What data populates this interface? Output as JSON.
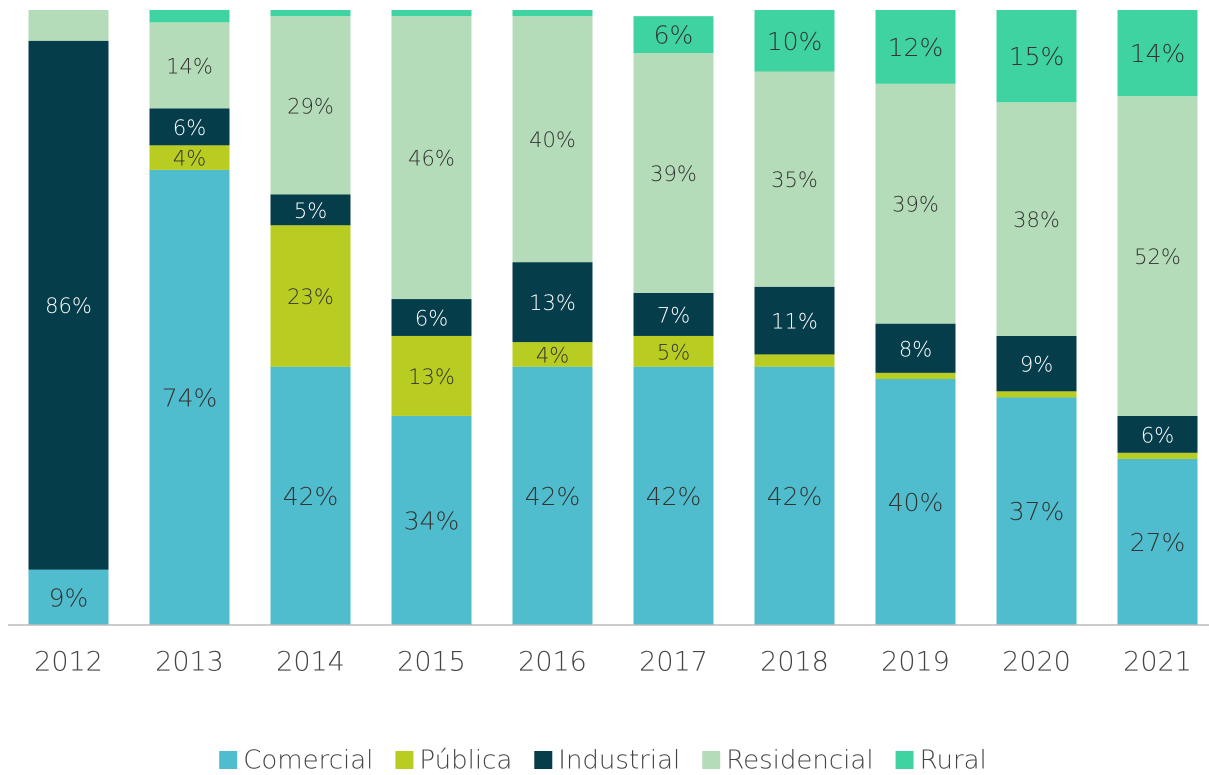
{
  "chart_data": {
    "type": "bar",
    "stacked": true,
    "categories": [
      "2012",
      "2013",
      "2014",
      "2015",
      "2016",
      "2017",
      "2018",
      "2019",
      "2020",
      "2021"
    ],
    "ylim": [
      0,
      100
    ],
    "series": [
      {
        "name": "Comercial",
        "color": "#4fbdce",
        "values": [
          9,
          74,
          42,
          34,
          42,
          42,
          42,
          40,
          37,
          27
        ],
        "value_labels": [
          "9%",
          "74%",
          "42%",
          "34%",
          "42%",
          "42%",
          "42%",
          "40%",
          "37%",
          "27%"
        ]
      },
      {
        "name": "Pública",
        "color": "#b9cc22",
        "values": [
          0,
          4,
          23,
          13,
          4,
          5,
          2,
          1,
          1,
          1
        ],
        "value_labels": [
          null,
          "4%",
          "23%",
          "13%",
          "4%",
          "5%",
          null,
          null,
          null,
          null
        ]
      },
      {
        "name": "Industrial",
        "color": "#053d4b",
        "values": [
          86,
          6,
          5,
          6,
          13,
          7,
          11,
          8,
          9,
          6
        ],
        "value_labels": [
          "86%",
          "6%",
          "5%",
          "6%",
          "13%",
          "7%",
          "11%",
          "8%",
          "9%",
          "6%"
        ]
      },
      {
        "name": "Residencial",
        "color": "#b5dcb9",
        "values": [
          5,
          14,
          29,
          46,
          40,
          39,
          35,
          39,
          38,
          52
        ],
        "value_labels": [
          null,
          "14%",
          "29%",
          "46%",
          "40%",
          "39%",
          "35%",
          "39%",
          "38%",
          "52%"
        ]
      },
      {
        "name": "Rural",
        "color": "#40d3a2",
        "values": [
          0,
          2,
          1,
          1,
          1,
          6,
          10,
          12,
          15,
          14
        ],
        "value_labels": [
          null,
          null,
          null,
          null,
          null,
          "6%",
          "10%",
          "12%",
          "15%",
          "14%"
        ]
      }
    ],
    "legend": "bottom"
  }
}
